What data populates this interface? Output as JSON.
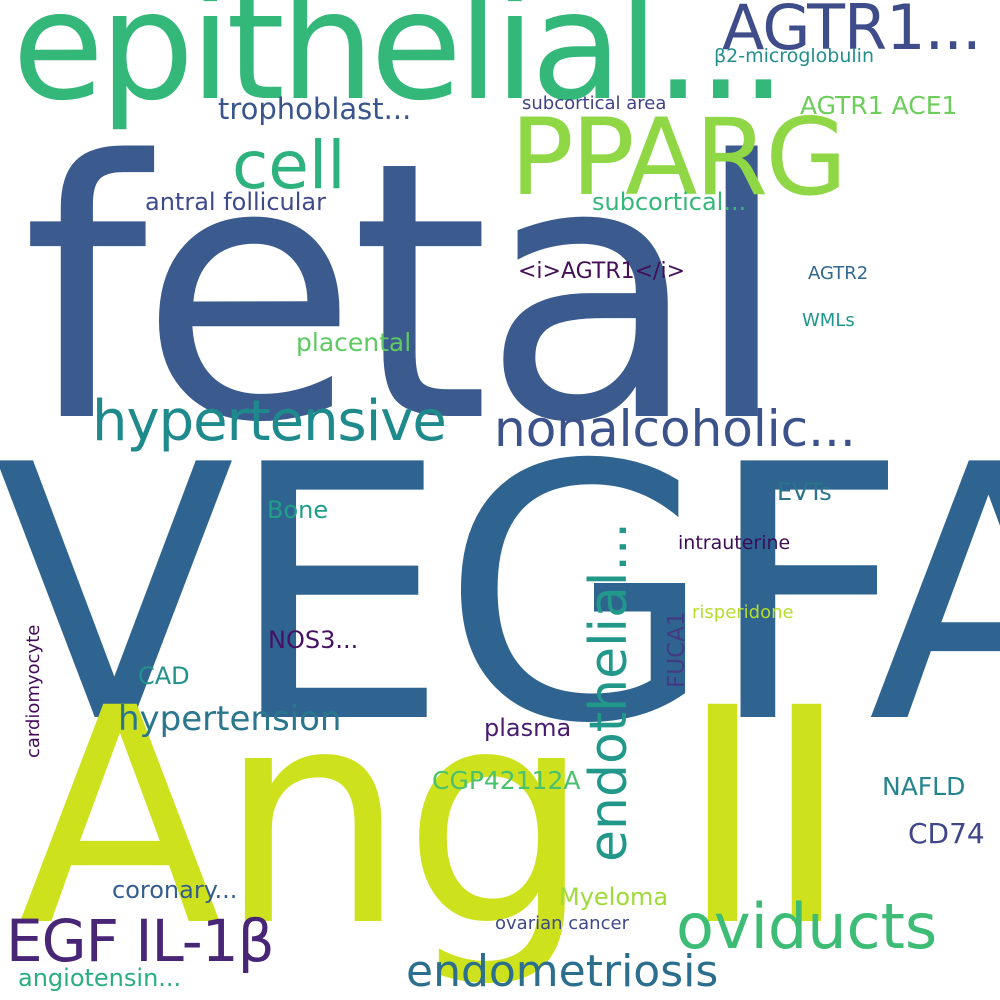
{
  "words": [
    {
      "text": "fetal",
      "color": "#3b5b8e"
    },
    {
      "text": "VEGFA",
      "color": "#2f6490"
    },
    {
      "text": "Ang II",
      "color": "#cde11d"
    },
    {
      "text": "epithelial...",
      "color": "#33b87a"
    },
    {
      "text": "PPARG",
      "color": "#8fd744"
    },
    {
      "text": "AGTR1...",
      "color": "#3e4c8a"
    },
    {
      "text": "cell",
      "color": "#2db27d"
    },
    {
      "text": "hypertensive",
      "color": "#1f8a8c"
    },
    {
      "text": "nonalcoholic...",
      "color": "#3b528b"
    },
    {
      "text": "endothelial...",
      "color": "#22988a"
    },
    {
      "text": "EGF IL-1β",
      "color": "#482575"
    },
    {
      "text": "oviducts",
      "color": "#3cbc74"
    },
    {
      "text": "endometriosis",
      "color": "#2c6e8e"
    },
    {
      "text": "hypertension",
      "color": "#2a768e"
    },
    {
      "text": "trophoblast...",
      "color": "#39558c"
    },
    {
      "text": "AGTR1 ACE1",
      "color": "#6ccd5a"
    },
    {
      "text": "β2-microglobulin",
      "color": "#218f8d"
    },
    {
      "text": "subcortical area",
      "color": "#424186"
    },
    {
      "text": "antral follicular",
      "color": "#3e4a89"
    },
    {
      "text": "subcortical...",
      "color": "#35b779"
    },
    {
      "text": "<i>AGTR1</i>",
      "color": "#440f56"
    },
    {
      "text": "AGTR2",
      "color": "#31688e"
    },
    {
      "text": "WMLs",
      "color": "#1f968b"
    },
    {
      "text": "placental",
      "color": "#5ec962"
    },
    {
      "text": "EVTs",
      "color": "#2b748e"
    },
    {
      "text": "Bone",
      "color": "#1f9e89"
    },
    {
      "text": "intrauterine",
      "color": "#3e0c57"
    },
    {
      "text": "risperidone",
      "color": "#b5de2b"
    },
    {
      "text": "FUCA1",
      "color": "#443a83"
    },
    {
      "text": "NOS3...",
      "color": "#471164"
    },
    {
      "text": "CAD",
      "color": "#21918c"
    },
    {
      "text": "plasma",
      "color": "#481d6f"
    },
    {
      "text": "CGP42112A",
      "color": "#4ac16d"
    },
    {
      "text": "NAFLD",
      "color": "#25858e"
    },
    {
      "text": "CD74",
      "color": "#404688"
    },
    {
      "text": "cardiomyocyte",
      "color": "#46085c"
    },
    {
      "text": "coronary...",
      "color": "#355e8d"
    },
    {
      "text": "Myeloma",
      "color": "#a0da39"
    },
    {
      "text": "ovarian cancer",
      "color": "#3e4989"
    },
    {
      "text": "angiotensin...",
      "color": "#29af7f"
    }
  ]
}
